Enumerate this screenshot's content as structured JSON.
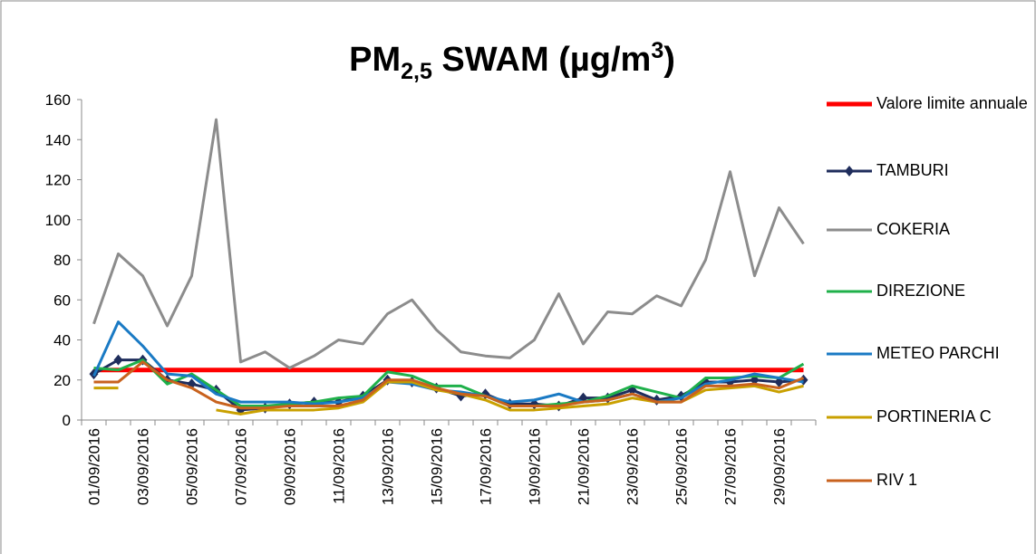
{
  "chart_data": {
    "type": "line",
    "title": [
      "PM",
      "2,5",
      " SWAM  (µg/m",
      "3",
      ")"
    ],
    "categories": [
      "01/09/2016",
      null,
      "03/09/2016",
      null,
      "05/09/2016",
      null,
      "07/09/2016",
      null,
      "09/09/2016",
      null,
      "11/09/2016",
      null,
      "13/09/2016",
      null,
      "15/09/2016",
      null,
      "17/09/2016",
      null,
      "19/09/2016",
      null,
      "21/09/2016",
      null,
      "23/09/2016",
      null,
      "25/09/2016",
      null,
      "27/09/2016",
      null,
      "29/09/2016",
      null
    ],
    "series": [
      {
        "name": "Valore limite annuale",
        "color": "#ff0000",
        "width": 5,
        "values": [
          25,
          25,
          25,
          25,
          25,
          25,
          25,
          25,
          25,
          25,
          25,
          25,
          25,
          25,
          25,
          25,
          25,
          25,
          25,
          25,
          25,
          25,
          25,
          25,
          25,
          25,
          25,
          25,
          25,
          25
        ]
      },
      {
        "name": "TAMBURI",
        "color": "#1f2d5c",
        "marker": "diamond",
        "values": [
          23,
          30,
          30,
          20,
          18,
          15,
          5,
          6,
          8,
          9,
          9,
          12,
          20,
          19,
          16,
          12,
          13,
          8,
          8,
          7,
          11,
          11,
          15,
          10,
          12,
          19,
          19,
          20,
          19,
          20
        ]
      },
      {
        "name": "COKERIA",
        "color": "#8c8c8c",
        "values": [
          48,
          83,
          72,
          47,
          72,
          150,
          29,
          34,
          26,
          32,
          40,
          38,
          53,
          60,
          45,
          34,
          32,
          31,
          40,
          63,
          38,
          54,
          53,
          62,
          57,
          80,
          124,
          72,
          106,
          88
        ]
      },
      {
        "name": "DIREZIONE",
        "color": "#1fb04a",
        "values": [
          26,
          25,
          30,
          18,
          23,
          15,
          7,
          7,
          8,
          9,
          11,
          12,
          24,
          22,
          17,
          17,
          12,
          7,
          7,
          8,
          9,
          12,
          17,
          14,
          11,
          21,
          21,
          22,
          21,
          28
        ]
      },
      {
        "name": "METEO PARCHI",
        "color": "#1a7ac4",
        "values": [
          22,
          49,
          37,
          23,
          22,
          13,
          9,
          9,
          9,
          8,
          9,
          11,
          19,
          18,
          15,
          14,
          12,
          9,
          10,
          13,
          9,
          10,
          13,
          9,
          11,
          18,
          20,
          23,
          21,
          19
        ]
      },
      {
        "name": "PORTINERIA C",
        "color": "#c9a000",
        "values": [
          16,
          16,
          null,
          null,
          null,
          5,
          3,
          5,
          5,
          5,
          6,
          9,
          19,
          19,
          15,
          13,
          10,
          5,
          5,
          6,
          7,
          8,
          11,
          9,
          9,
          15,
          16,
          17,
          14,
          17
        ]
      },
      {
        "name": "RIV 1",
        "color": "#c8621e",
        "values": [
          19,
          19,
          29,
          20,
          16,
          9,
          6,
          6,
          7,
          7,
          7,
          10,
          20,
          20,
          16,
          13,
          12,
          7,
          7,
          7,
          9,
          10,
          13,
          9,
          9,
          17,
          17,
          18,
          16,
          21
        ]
      }
    ],
    "ylim": [
      0,
      160
    ],
    "yticks": [
      0,
      20,
      40,
      60,
      80,
      100,
      120,
      140,
      160
    ],
    "grid": false
  }
}
